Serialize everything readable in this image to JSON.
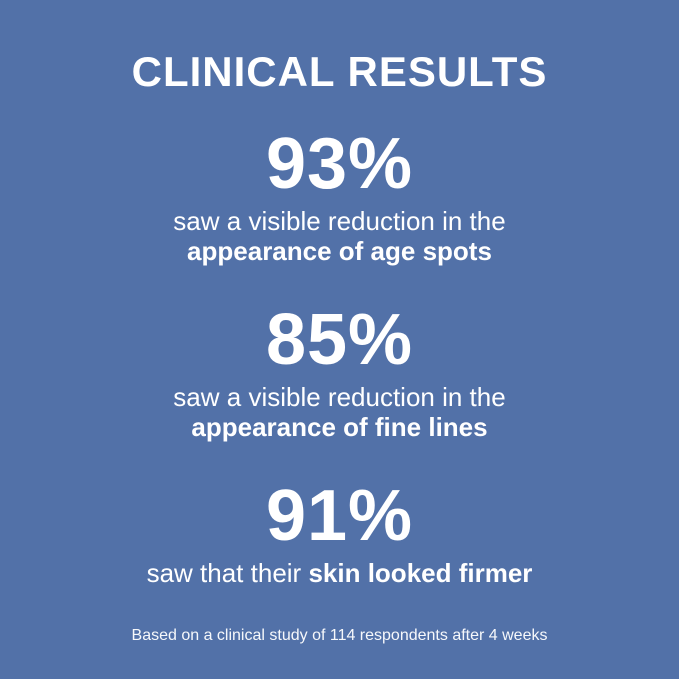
{
  "canvas": {
    "background_color": "#5271a8",
    "text_color": "#ffffff"
  },
  "title": "CLINICAL RESULTS",
  "stats": [
    {
      "percent": "93%",
      "desc_regular": "saw a visible reduction in the",
      "desc_bold": "appearance of age spots"
    },
    {
      "percent": "85%",
      "desc_regular": "saw a visible reduction in the",
      "desc_bold": "appearance of fine lines"
    },
    {
      "percent": "91%",
      "desc_regular": "saw that their",
      "desc_bold": "skin looked firmer"
    }
  ],
  "footnote": "Based on a clinical study of 114 respondents after 4 weeks"
}
